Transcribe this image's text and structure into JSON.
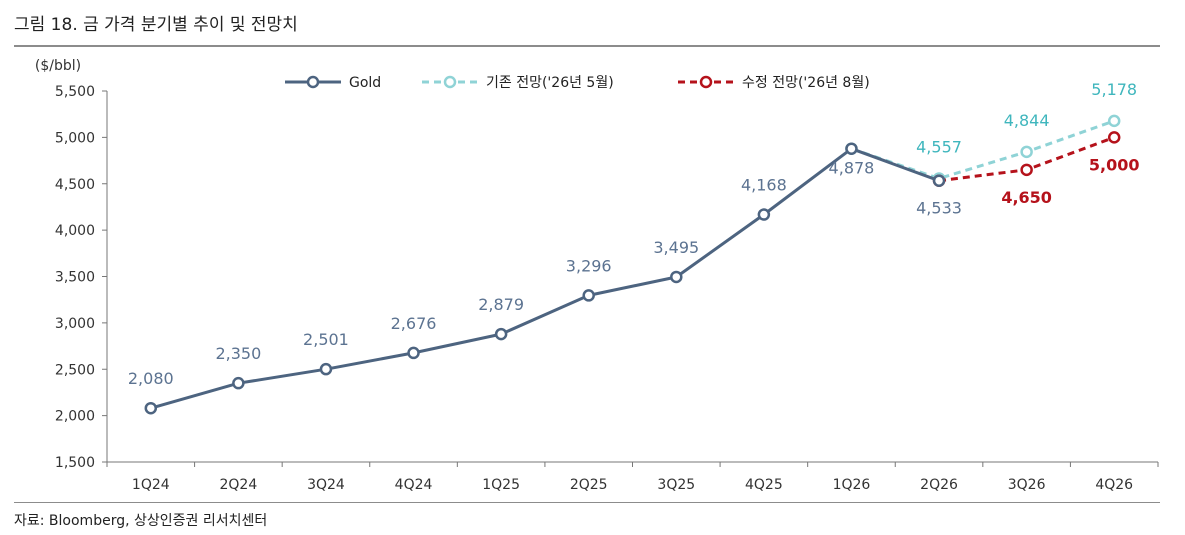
{
  "figure_title": "그림 18. 금 가격 분기별 추이 및 전망치",
  "source": "자료: Bloomberg, 상상인증권 리서치센터",
  "colors": {
    "gold": "#4d6480",
    "previous": "#8fd3d6",
    "revised": "#b5121b",
    "axis": "#777777"
  },
  "chart_data": {
    "type": "line",
    "title": "",
    "ylabel": "($/bbl)",
    "xlabel": "",
    "ylim": [
      1500,
      5500
    ],
    "yticks": [
      1500,
      2000,
      2500,
      3000,
      3500,
      4000,
      4500,
      5000,
      5500
    ],
    "ytick_labels": [
      "1,500",
      "2,000",
      "2,500",
      "3,000",
      "3,500",
      "4,000",
      "4,500",
      "5,000",
      "5,500"
    ],
    "categories": [
      "1Q24",
      "2Q24",
      "3Q24",
      "4Q24",
      "1Q25",
      "2Q25",
      "3Q25",
      "4Q25",
      "1Q26",
      "2Q26",
      "3Q26",
      "4Q26"
    ],
    "grid": false,
    "legend_position": "top",
    "series": [
      {
        "name": "Gold",
        "style": "solid",
        "values": [
          2080,
          2350,
          2501,
          2676,
          2879,
          3296,
          3495,
          4168,
          4878,
          4533,
          null,
          null
        ],
        "labels": [
          "2,080",
          "2,350",
          "2,501",
          "2,676",
          "2,879",
          "3,296",
          "3,495",
          "4,168",
          "4,878",
          "4,533",
          null,
          null
        ]
      },
      {
        "name": "기존 전망('26년 5월)",
        "style": "dashed",
        "values": [
          null,
          null,
          null,
          null,
          null,
          null,
          null,
          null,
          4878,
          4557,
          4844,
          5178
        ],
        "labels": [
          null,
          null,
          null,
          null,
          null,
          null,
          null,
          null,
          null,
          "4,557",
          "4,844",
          "5,178"
        ]
      },
      {
        "name": "수정 전망('26년 8월)",
        "style": "dashed",
        "values": [
          null,
          null,
          null,
          null,
          null,
          null,
          null,
          null,
          null,
          4533,
          4650,
          5000
        ],
        "labels": [
          null,
          null,
          null,
          null,
          null,
          null,
          null,
          null,
          null,
          null,
          "4,650",
          "5,000"
        ]
      }
    ]
  }
}
